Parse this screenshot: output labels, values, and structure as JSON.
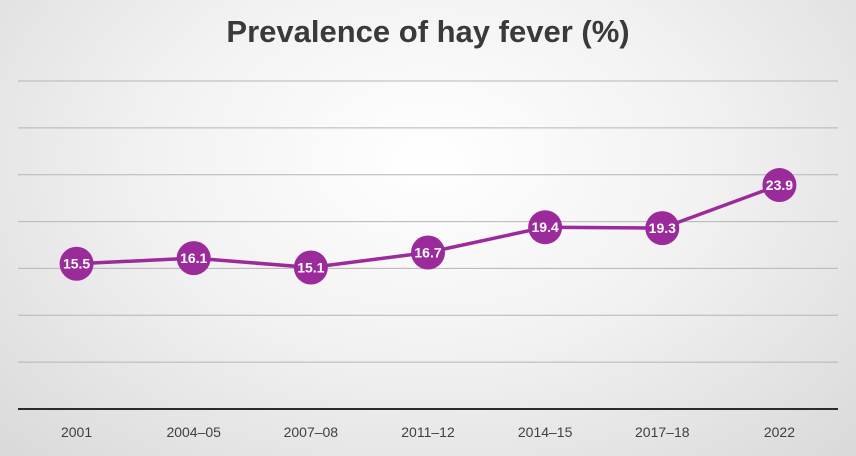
{
  "chart_data": {
    "type": "line",
    "title": "Prevalence of hay fever (%)",
    "categories": [
      "2001",
      "2004–05",
      "2007–08",
      "2011–12",
      "2014–15",
      "2017–18",
      "2022"
    ],
    "series": [
      {
        "values": [
          15.5,
          16.1,
          15.1,
          16.7,
          19.4,
          19.3,
          23.9
        ],
        "color": "#9b2a9b"
      }
    ],
    "data_labels": [
      "15.5",
      "16.1",
      "15.1",
      "16.7",
      "19.4",
      "19.3",
      "23.9"
    ],
    "ylim": [
      0,
      35
    ],
    "grid": true,
    "legend": "none",
    "xlabel": "",
    "ylabel": ""
  }
}
